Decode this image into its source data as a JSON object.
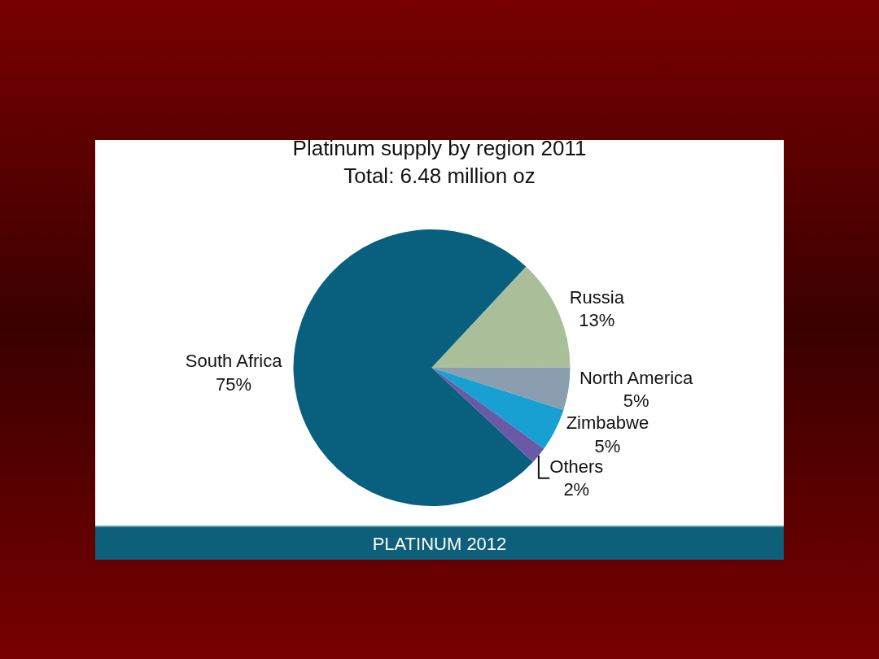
{
  "chart_data": {
    "type": "pie",
    "title": "Platinum supply by region 2011",
    "subtitle": "Total: 6.48 million oz",
    "categories": [
      "South Africa",
      "Russia",
      "North America",
      "Zimbabwe",
      "Others"
    ],
    "values": [
      75,
      13,
      5,
      5,
      2
    ],
    "value_labels": [
      "75%",
      "13%",
      "5%",
      "5%",
      "2%"
    ],
    "colors": [
      "#08607e",
      "#a9bf9a",
      "#8a9eb0",
      "#18a0d2",
      "#6a5aa6"
    ],
    "legend": false,
    "annotations": [
      "PLATINUM 2012"
    ]
  }
}
